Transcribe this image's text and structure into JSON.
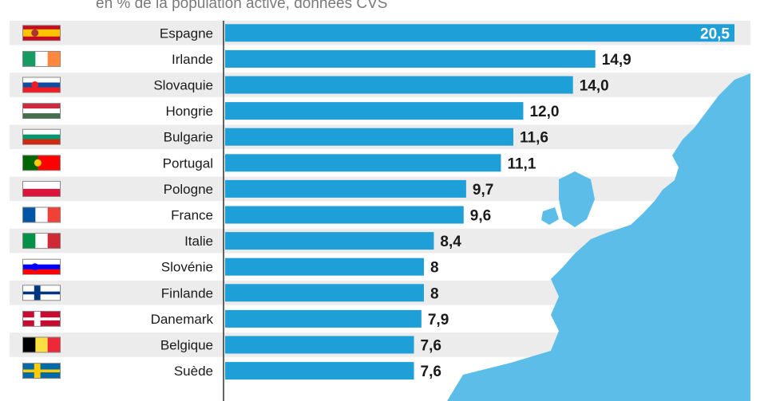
{
  "subtitle": "en % de la population active, données CVS",
  "chart_data": {
    "type": "bar",
    "orientation": "horizontal",
    "subtitle": "en % de la population active, données CVS",
    "categories": [
      "Espagne",
      "Irlande",
      "Slovaquie",
      "Hongrie",
      "Bulgarie",
      "Portugal",
      "Pologne",
      "France",
      "Italie",
      "Slovénie",
      "Finlande",
      "Danemark",
      "Belgique",
      "Suède"
    ],
    "values": [
      20.5,
      14.9,
      14.0,
      12.0,
      11.6,
      11.1,
      9.7,
      9.6,
      8.4,
      8,
      8,
      7.9,
      7.6,
      7.6
    ],
    "value_labels": [
      "20,5",
      "14,9",
      "14,0",
      "12,0",
      "11,6",
      "11,1",
      "9,7",
      "9,6",
      "8,4",
      "8",
      "8",
      "7,9",
      "7,6",
      "7,6"
    ],
    "flags": [
      {
        "country": "Espagne",
        "type": "h",
        "colors": [
          "#c60b1e",
          "#ffc400",
          "#ffc400",
          "#c60b1e"
        ],
        "emblem": "#a33"
      },
      {
        "country": "Irlande",
        "type": "v",
        "colors": [
          "#169b62",
          "#ffffff",
          "#ff883e"
        ]
      },
      {
        "country": "Slovaquie",
        "type": "h",
        "colors": [
          "#ffffff",
          "#0b4ea2",
          "#ee1c25"
        ],
        "emblem": "#ee1c25"
      },
      {
        "country": "Hongrie",
        "type": "h",
        "colors": [
          "#cd2a3e",
          "#ffffff",
          "#436f4d"
        ]
      },
      {
        "country": "Bulgarie",
        "type": "h",
        "colors": [
          "#ffffff",
          "#00966e",
          "#d62612"
        ]
      },
      {
        "country": "Portugal",
        "type": "vp",
        "colors": [
          "#006600",
          "#ff0000"
        ],
        "emblem": "#ffcc00"
      },
      {
        "country": "Pologne",
        "type": "h",
        "colors": [
          "#ffffff",
          "#dc143c"
        ]
      },
      {
        "country": "France",
        "type": "v",
        "colors": [
          "#0055a4",
          "#ffffff",
          "#ef4135"
        ]
      },
      {
        "country": "Italie",
        "type": "v",
        "colors": [
          "#009246",
          "#ffffff",
          "#ce2b37"
        ]
      },
      {
        "country": "Slovénie",
        "type": "h",
        "colors": [
          "#ffffff",
          "#0000ff",
          "#ff0000"
        ],
        "emblem": "#0000ff"
      },
      {
        "country": "Finlande",
        "type": "cross",
        "colors": [
          "#ffffff",
          "#003580"
        ]
      },
      {
        "country": "Danemark",
        "type": "cross",
        "colors": [
          "#c60c30",
          "#ffffff"
        ]
      },
      {
        "country": "Belgique",
        "type": "v",
        "colors": [
          "#000000",
          "#fae042",
          "#ed2939"
        ]
      },
      {
        "country": "Suède",
        "type": "cross",
        "colors": [
          "#006aa7",
          "#fecc00"
        ]
      }
    ],
    "bar_color": "#1f9fd8",
    "xlim": [
      0,
      20.5
    ],
    "background_map": "europe-map"
  }
}
